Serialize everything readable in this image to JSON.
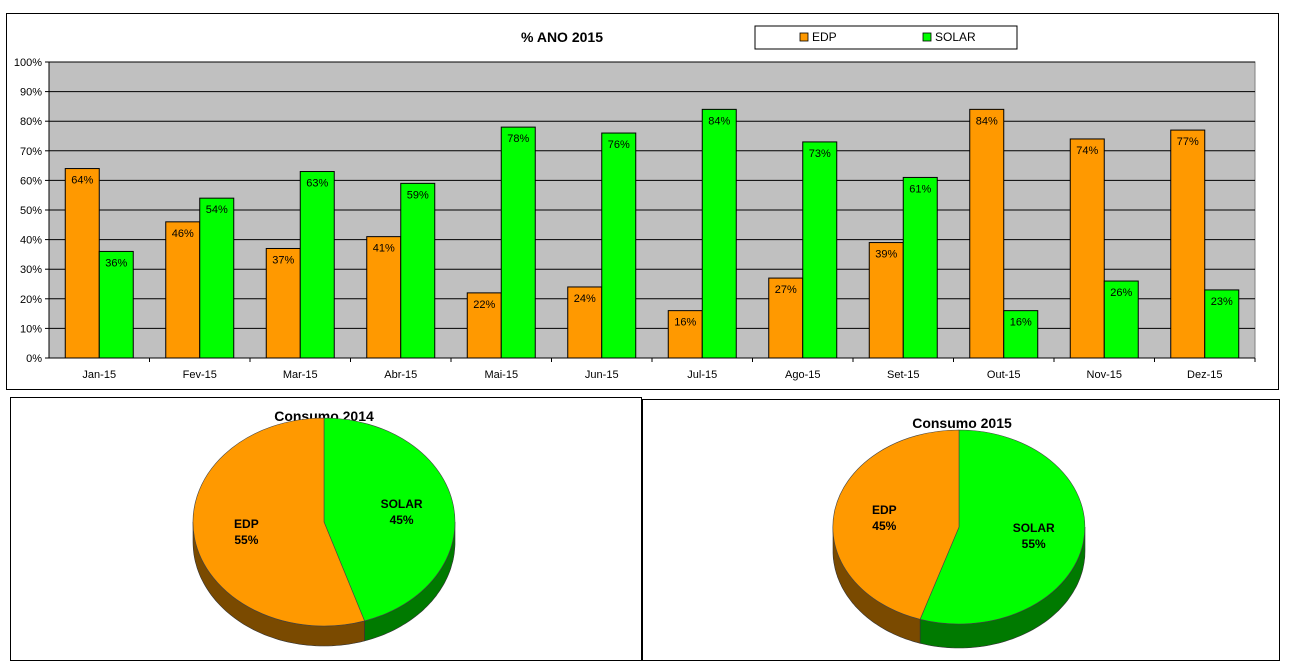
{
  "colors": {
    "edp": "#ff9900",
    "solar": "#00ff00",
    "edp_side": "#7a4a00",
    "solar_side": "#007a00",
    "plot_bg": "#c0c0c0"
  },
  "chart_data": [
    {
      "type": "bar",
      "title": "% ANO 2015",
      "categories": [
        "Jan-15",
        "Fev-15",
        "Mar-15",
        "Abr-15",
        "Mai-15",
        "Jun-15",
        "Jul-15",
        "Ago-15",
        "Set-15",
        "Out-15",
        "Nov-15",
        "Dez-15"
      ],
      "series": [
        {
          "name": "EDP",
          "color": "#ff9900",
          "values": [
            64,
            46,
            37,
            41,
            22,
            24,
            16,
            27,
            39,
            84,
            74,
            77
          ]
        },
        {
          "name": "SOLAR",
          "color": "#00ff00",
          "values": [
            36,
            54,
            63,
            59,
            78,
            76,
            84,
            73,
            61,
            16,
            26,
            23
          ]
        }
      ],
      "yticks": [
        "0%",
        "10%",
        "20%",
        "30%",
        "40%",
        "50%",
        "60%",
        "70%",
        "80%",
        "90%",
        "100%"
      ],
      "ylim": [
        0,
        100
      ],
      "grid": true,
      "legend": "top-right"
    },
    {
      "type": "pie",
      "title": "Consumo 2014",
      "slices": [
        {
          "name": "EDP",
          "value": 55,
          "label": "55%",
          "color": "#ff9900"
        },
        {
          "name": "SOLAR",
          "value": 45,
          "label": "45%",
          "color": "#00ff00"
        }
      ]
    },
    {
      "type": "pie",
      "title": "Consumo 2015",
      "slices": [
        {
          "name": "EDP",
          "value": 45,
          "label": "45%",
          "color": "#ff9900"
        },
        {
          "name": "SOLAR",
          "value": 55,
          "label": "55%",
          "color": "#00ff00"
        }
      ]
    }
  ]
}
